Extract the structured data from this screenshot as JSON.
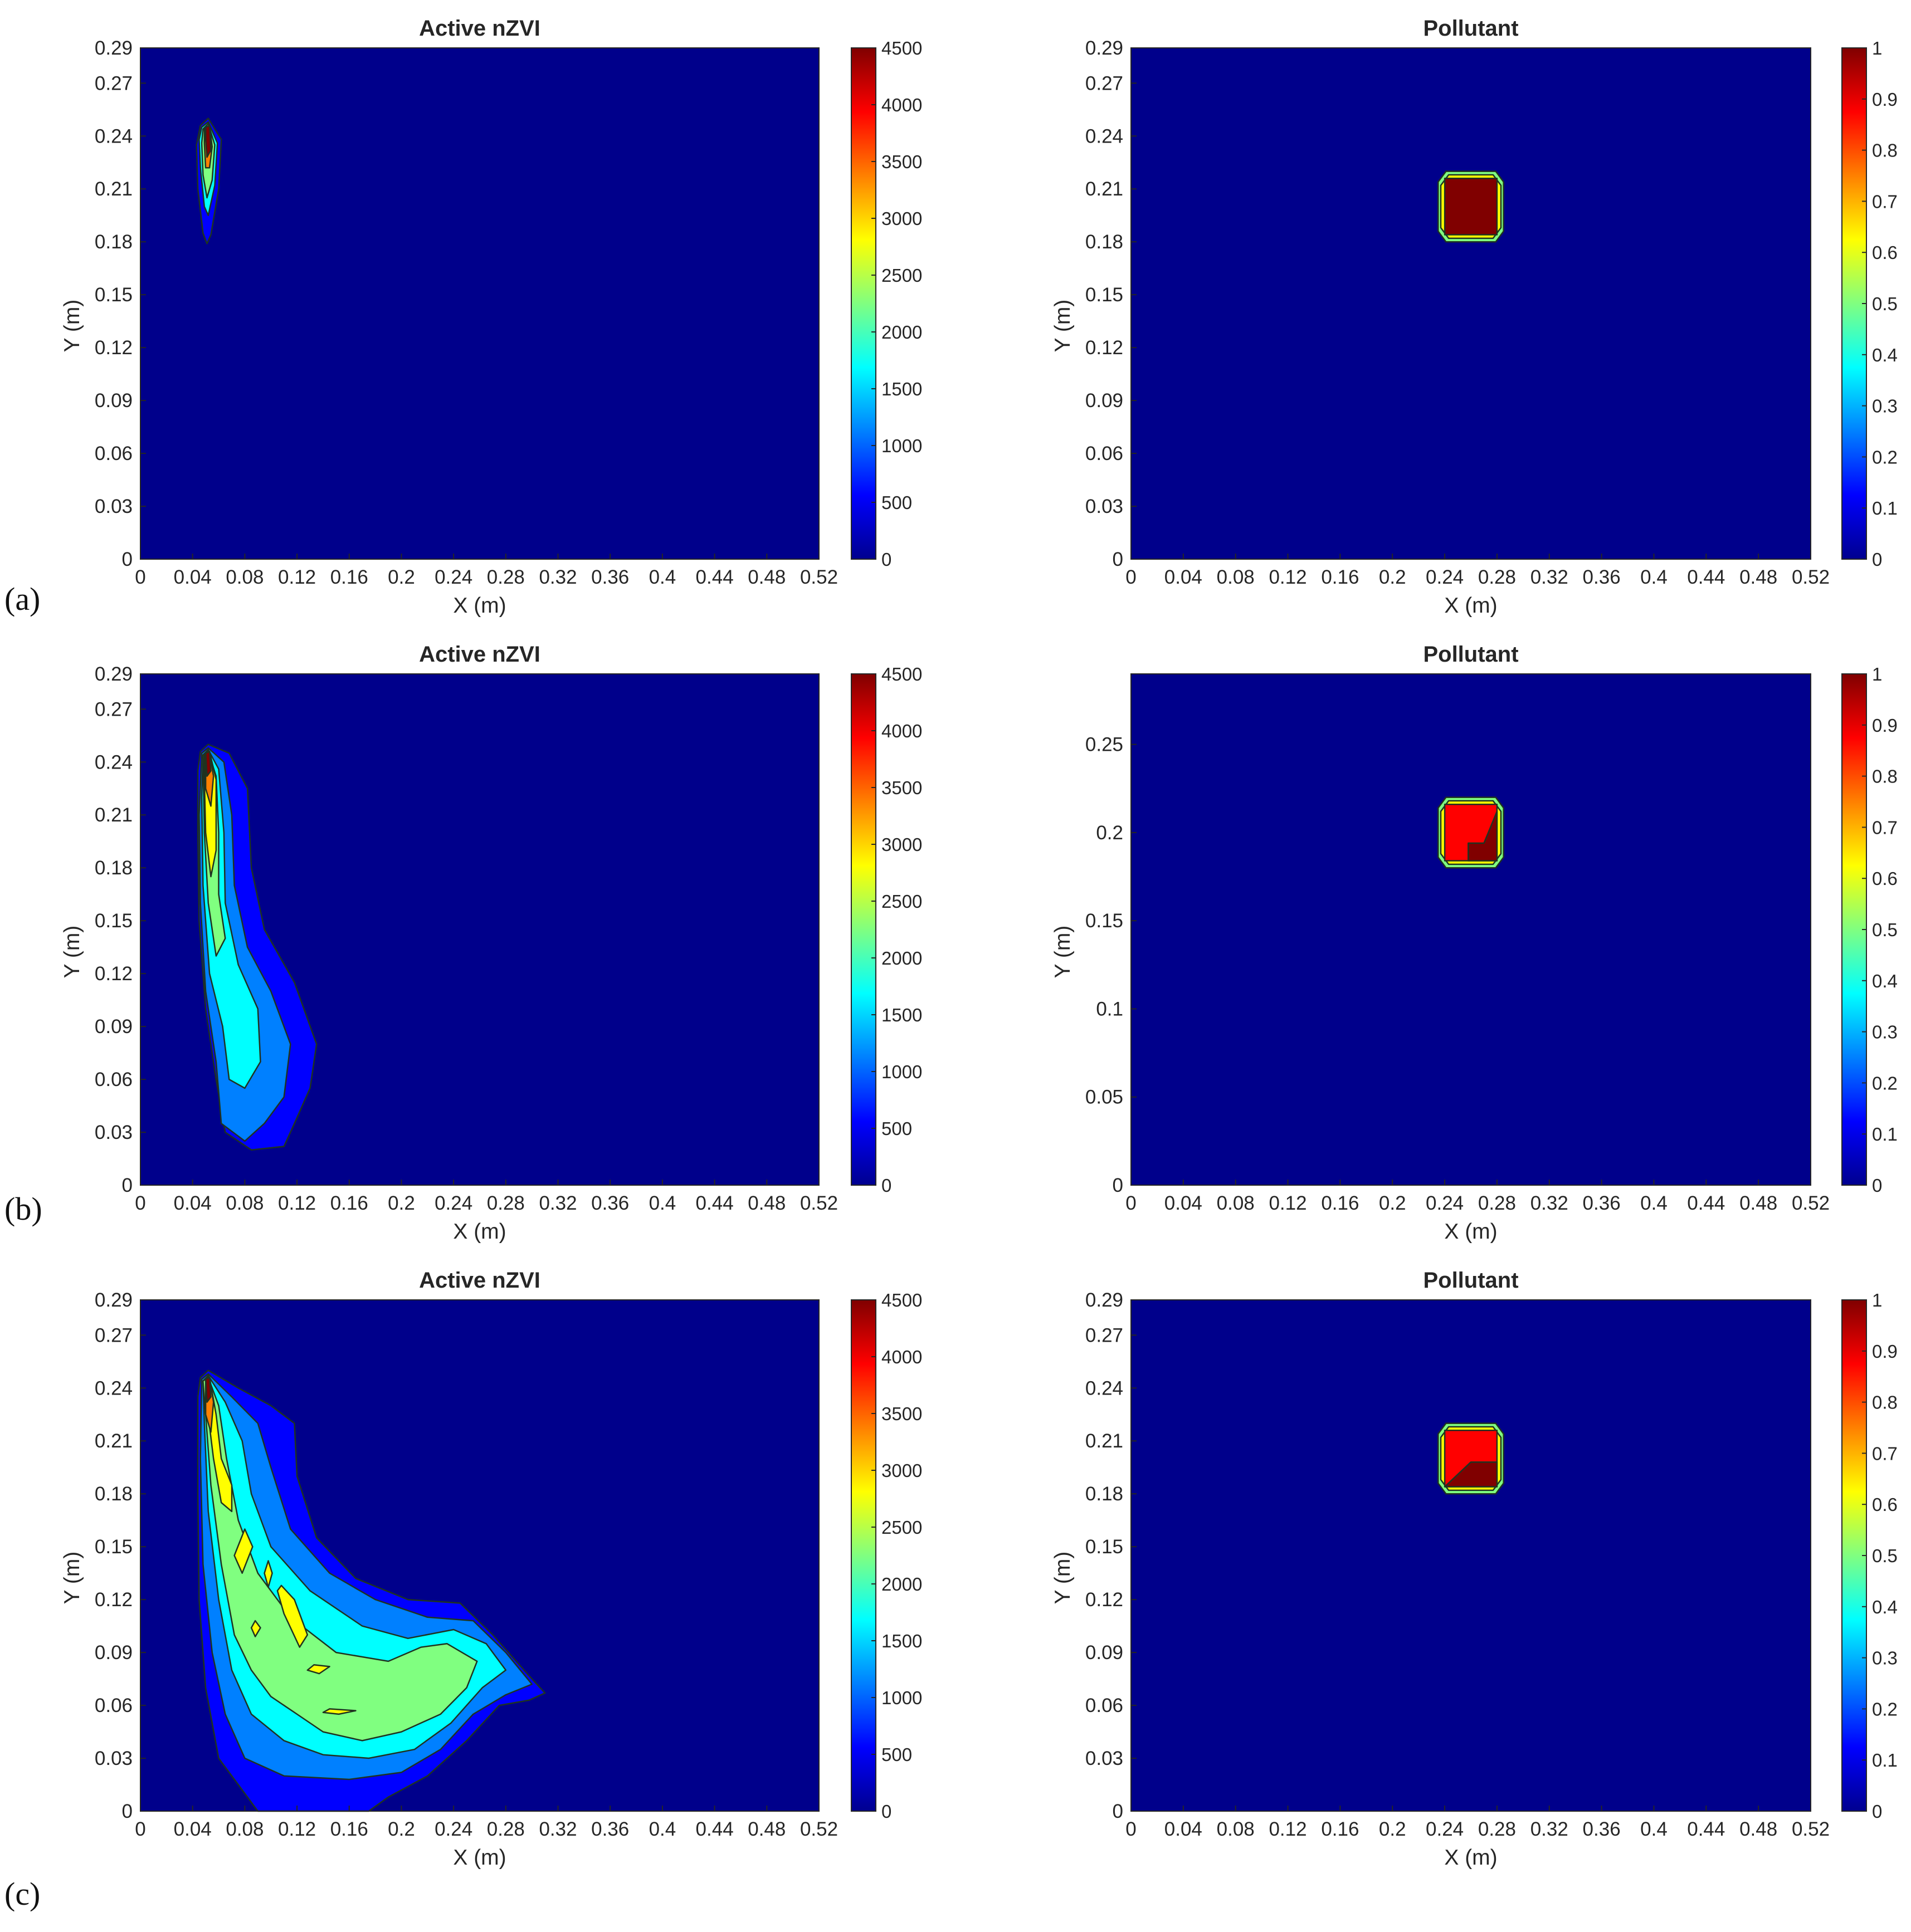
{
  "figure": {
    "panel_letters": [
      "(a)",
      "(b)",
      "(c)"
    ],
    "colormap": [
      "#00008F",
      "#0000FF",
      "#0080FF",
      "#00FFFF",
      "#80FF80",
      "#FFFF00",
      "#FF8000",
      "#FF0000",
      "#800000"
    ],
    "plot_background": "#00008B",
    "contour_line_color": "#1f3320"
  },
  "chart_data": [
    {
      "type": "heatmap",
      "panel": "(a)",
      "title": "Active nZVI",
      "xlabel": "X (m)",
      "ylabel": "Y (m)",
      "xlim": [
        0,
        0.52
      ],
      "ylim": [
        0,
        0.29
      ],
      "xticks": [
        "0",
        "0.04",
        "0.08",
        "0.12",
        "0.16",
        "0.2",
        "0.24",
        "0.28",
        "0.32",
        "0.36",
        "0.4",
        "0.44",
        "0.48",
        "0.52"
      ],
      "yticks": [
        "0",
        "0.03",
        "0.06",
        "0.09",
        "0.12",
        "0.15",
        "0.18",
        "0.21",
        "0.24",
        "0.27",
        "0.29"
      ],
      "colorbar": {
        "min": 0,
        "max": 4500,
        "ticks": [
          "0",
          "500",
          "1000",
          "1500",
          "2000",
          "2500",
          "3000",
          "3500",
          "4000",
          "4500"
        ]
      },
      "plume": {
        "source": [
          0.05,
          0.245
        ],
        "tip_y": 0.18,
        "half_width": 0.012,
        "peak_value": 4500
      }
    },
    {
      "type": "heatmap",
      "panel": "(a)",
      "title": "Pollutant",
      "xlabel": "X (m)",
      "ylabel": "Y (m)",
      "xlim": [
        0,
        0.52
      ],
      "ylim": [
        0,
        0.29
      ],
      "xticks": [
        "0",
        "0.04",
        "0.08",
        "0.12",
        "0.16",
        "0.2",
        "0.24",
        "0.28",
        "0.32",
        "0.36",
        "0.4",
        "0.44",
        "0.48",
        "0.52"
      ],
      "yticks": [
        "0",
        "0.03",
        "0.06",
        "0.09",
        "0.12",
        "0.15",
        "0.18",
        "0.21",
        "0.24",
        "0.27",
        "0.29"
      ],
      "colorbar": {
        "min": 0,
        "max": 1,
        "ticks": [
          "0",
          "0.1",
          "0.2",
          "0.3",
          "0.4",
          "0.5",
          "0.6",
          "0.7",
          "0.8",
          "0.9",
          "1"
        ]
      },
      "block": {
        "x": [
          0.235,
          0.285
        ],
        "y": [
          0.18,
          0.22
        ],
        "core_value": 1.0
      }
    },
    {
      "type": "heatmap",
      "panel": "(b)",
      "title": "Active nZVI",
      "xlabel": "X (m)",
      "ylabel": "Y (m)",
      "xlim": [
        0,
        0.52
      ],
      "ylim": [
        0,
        0.29
      ],
      "xticks": [
        "0",
        "0.04",
        "0.08",
        "0.12",
        "0.16",
        "0.2",
        "0.24",
        "0.28",
        "0.32",
        "0.36",
        "0.4",
        "0.44",
        "0.48",
        "0.52"
      ],
      "yticks": [
        "0",
        "0.03",
        "0.06",
        "0.09",
        "0.12",
        "0.15",
        "0.18",
        "0.21",
        "0.24",
        "0.27",
        "0.29"
      ],
      "colorbar": {
        "min": 0,
        "max": 4500,
        "ticks": [
          "0",
          "500",
          "1000",
          "1500",
          "2000",
          "2500",
          "3000",
          "3500",
          "4000",
          "4500"
        ]
      },
      "plume": {
        "source": [
          0.05,
          0.245
        ],
        "extent_x": [
          0.045,
          0.135
        ],
        "extent_y": [
          0.025,
          0.25
        ],
        "peak_value": 4500
      }
    },
    {
      "type": "heatmap",
      "panel": "(b)",
      "title": "Pollutant",
      "xlabel": "X (m)",
      "ylabel": "Y (m)",
      "xlim": [
        0,
        0.52
      ],
      "ylim": [
        0,
        0.29
      ],
      "xticks": [
        "0",
        "0.04",
        "0.08",
        "0.12",
        "0.16",
        "0.2",
        "0.24",
        "0.28",
        "0.32",
        "0.36",
        "0.4",
        "0.44",
        "0.48",
        "0.52"
      ],
      "yticks": [
        "0",
        "0.05",
        "0.1",
        "0.15",
        "0.2",
        "0.25"
      ],
      "colorbar": {
        "min": 0,
        "max": 1,
        "ticks": [
          "0",
          "0.1",
          "0.2",
          "0.3",
          "0.4",
          "0.5",
          "0.6",
          "0.7",
          "0.8",
          "0.9",
          "1"
        ]
      },
      "block": {
        "x": [
          0.235,
          0.285
        ],
        "y": [
          0.18,
          0.22
        ],
        "core_value": 0.95
      }
    },
    {
      "type": "heatmap",
      "panel": "(c)",
      "title": "Active nZVI",
      "xlabel": "X (m)",
      "ylabel": "Y (m)",
      "xlim": [
        0,
        0.52
      ],
      "ylim": [
        0,
        0.29
      ],
      "xticks": [
        "0",
        "0.04",
        "0.08",
        "0.12",
        "0.16",
        "0.2",
        "0.24",
        "0.28",
        "0.32",
        "0.36",
        "0.4",
        "0.44",
        "0.48",
        "0.52"
      ],
      "yticks": [
        "0",
        "0.03",
        "0.06",
        "0.09",
        "0.12",
        "0.15",
        "0.18",
        "0.21",
        "0.24",
        "0.27",
        "0.29"
      ],
      "colorbar": {
        "min": 0,
        "max": 4500,
        "ticks": [
          "0",
          "500",
          "1000",
          "1500",
          "2000",
          "2500",
          "3000",
          "3500",
          "4000",
          "4500"
        ]
      },
      "plume": {
        "source": [
          0.05,
          0.245
        ],
        "extent_x": [
          0.045,
          0.31
        ],
        "extent_y": [
          0,
          0.25
        ],
        "peak_value": 4500
      }
    },
    {
      "type": "heatmap",
      "panel": "(c)",
      "title": "Pollutant",
      "xlabel": "X (m)",
      "ylabel": "Y (m)",
      "xlim": [
        0,
        0.52
      ],
      "ylim": [
        0,
        0.29
      ],
      "xticks": [
        "0",
        "0.04",
        "0.08",
        "0.12",
        "0.16",
        "0.2",
        "0.24",
        "0.28",
        "0.32",
        "0.36",
        "0.4",
        "0.44",
        "0.48",
        "0.52"
      ],
      "yticks": [
        "0",
        "0.03",
        "0.06",
        "0.09",
        "0.12",
        "0.15",
        "0.18",
        "0.21",
        "0.24",
        "0.27",
        "0.29"
      ],
      "colorbar": {
        "min": 0,
        "max": 1,
        "ticks": [
          "0",
          "0.1",
          "0.2",
          "0.3",
          "0.4",
          "0.5",
          "0.6",
          "0.7",
          "0.8",
          "0.9",
          "1"
        ]
      },
      "block": {
        "x": [
          0.235,
          0.285
        ],
        "y": [
          0.18,
          0.22
        ],
        "core_value": 0.95
      }
    }
  ]
}
